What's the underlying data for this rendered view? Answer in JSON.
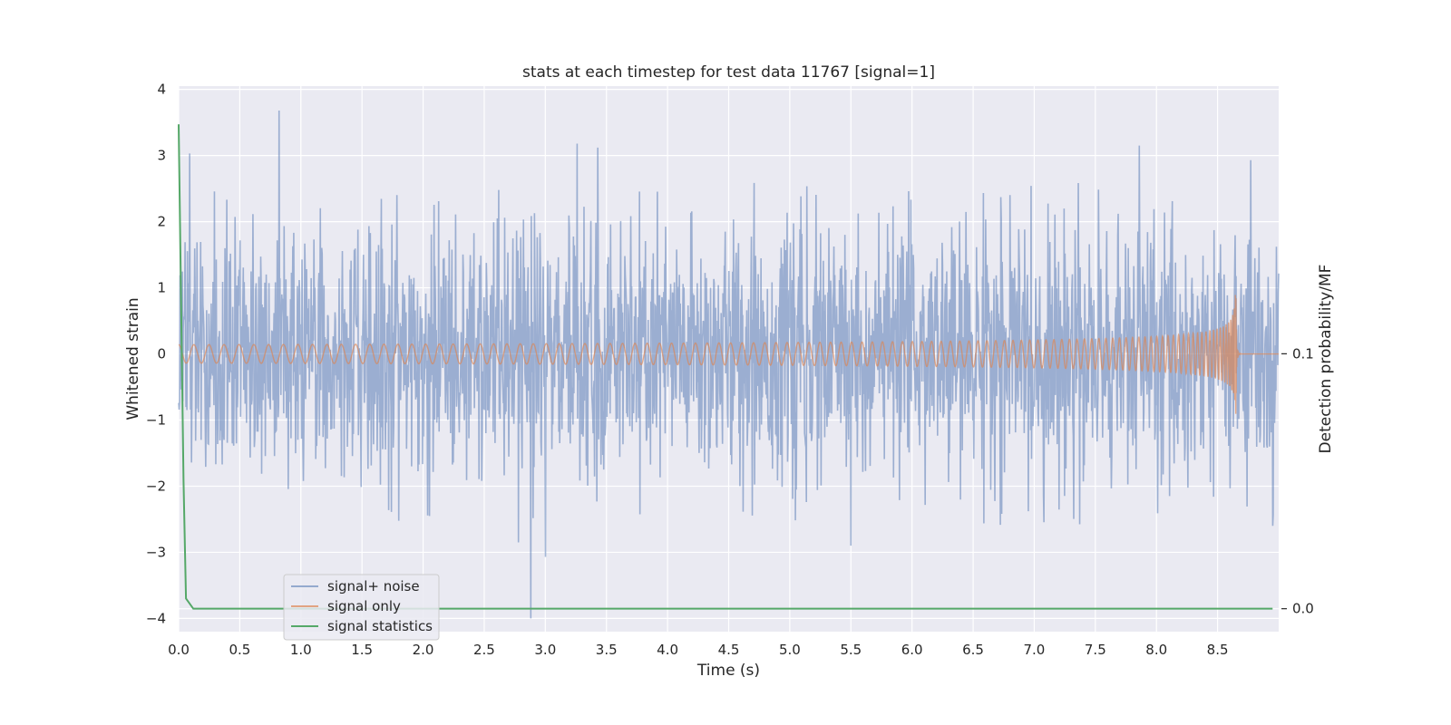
{
  "chart_data": {
    "type": "line",
    "title": "stats at each timestep for test data 11767 [signal=1]",
    "xlabel": "Time (s)",
    "ylabel": "Whitened strain",
    "y2label": "Detection probability/MF",
    "xlim": [
      0,
      9
    ],
    "ylim": [
      -4.2,
      4.05
    ],
    "y2lim": [
      -0.009,
      0.205
    ],
    "x_ticks": [
      0.0,
      0.5,
      1.0,
      1.5,
      2.0,
      2.5,
      3.0,
      3.5,
      4.0,
      4.5,
      5.0,
      5.5,
      6.0,
      6.5,
      7.0,
      7.5,
      8.0,
      8.5
    ],
    "x_tick_labels": [
      "0.0",
      "0.5",
      "1.0",
      "1.5",
      "2.0",
      "2.5",
      "3.0",
      "3.5",
      "4.0",
      "4.5",
      "5.0",
      "5.5",
      "6.0",
      "6.5",
      "7.0",
      "7.5",
      "8.0",
      "8.5"
    ],
    "y_ticks": [
      4,
      3,
      2,
      1,
      0,
      -1,
      -2,
      -3,
      -4
    ],
    "y_tick_labels": [
      "4",
      "3",
      "2",
      "1",
      "0",
      "−1",
      "−2",
      "−3",
      "−4"
    ],
    "y2_ticks": [
      0.1,
      0.0
    ],
    "y2_tick_labels": [
      "0.1",
      "0.0"
    ],
    "grid": true,
    "legend_position": "lower-left",
    "colors": {
      "background": "#eaeaf2",
      "noise": "#4c72b0",
      "signal": "#dd8452",
      "stat": "#55a868",
      "grid": "#ffffff"
    },
    "series": [
      {
        "name": "signal+ noise",
        "axis": "left",
        "description": "whitened noisy strain, roughly Gaussian with std ~1",
        "x_range": [
          0,
          9
        ],
        "std": 1.0,
        "notable_peaks": [
          {
            "x": 0.82,
            "y": 3.68
          },
          {
            "x": 0.09,
            "y": 3.03
          },
          {
            "x": 3.26,
            "y": 3.18
          },
          {
            "x": 3.43,
            "y": 3.12
          },
          {
            "x": 7.86,
            "y": 3.15
          },
          {
            "x": 8.77,
            "y": 2.93
          },
          {
            "x": 2.88,
            "y": -4.0
          },
          {
            "x": 3.0,
            "y": -3.07
          },
          {
            "x": 5.5,
            "y": -2.9
          },
          {
            "x": 2.78,
            "y": -2.85
          },
          {
            "x": 8.95,
            "y": -2.6
          }
        ]
      },
      {
        "name": "signal only",
        "axis": "left",
        "description": "chirp signal growing in amplitude, merging near 8.65 s",
        "merger_time": 8.65,
        "peak_amplitude": 0.95,
        "end_x": 9.0
      },
      {
        "name": "signal statistics",
        "axis": "right",
        "x": [
          0.0,
          0.02,
          0.04,
          0.06,
          0.12,
          8.95
        ],
        "y": [
          0.19,
          0.12,
          0.05,
          0.004,
          0.0,
          0.0
        ]
      }
    ]
  }
}
